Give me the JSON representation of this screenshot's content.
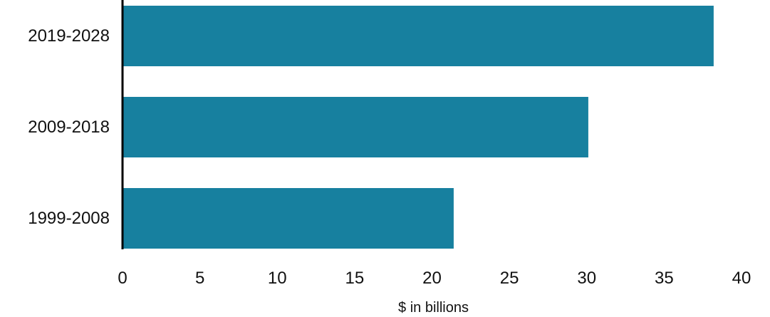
{
  "chart_data": {
    "type": "bar",
    "orientation": "horizontal",
    "categories": [
      "2019-2028",
      "2009-2018",
      "1999-2008"
    ],
    "values": [
      38.2,
      30.1,
      21.4
    ],
    "xlabel": "$ in billions",
    "ylabel": "",
    "xlim": [
      0,
      40
    ],
    "xticks": [
      "0",
      "5",
      "10",
      "15",
      "20",
      "25",
      "30",
      "35",
      "40"
    ],
    "grid": false,
    "bar_color": "#17809f",
    "axis_color": "#000000"
  }
}
